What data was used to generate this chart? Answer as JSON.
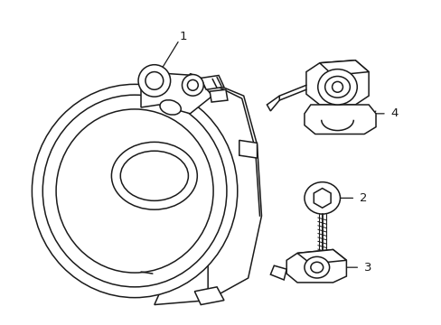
{
  "background_color": "#ffffff",
  "line_color": "#1a1a1a",
  "line_width": 1.1,
  "fig_width": 4.89,
  "fig_height": 3.6,
  "dpi": 100
}
